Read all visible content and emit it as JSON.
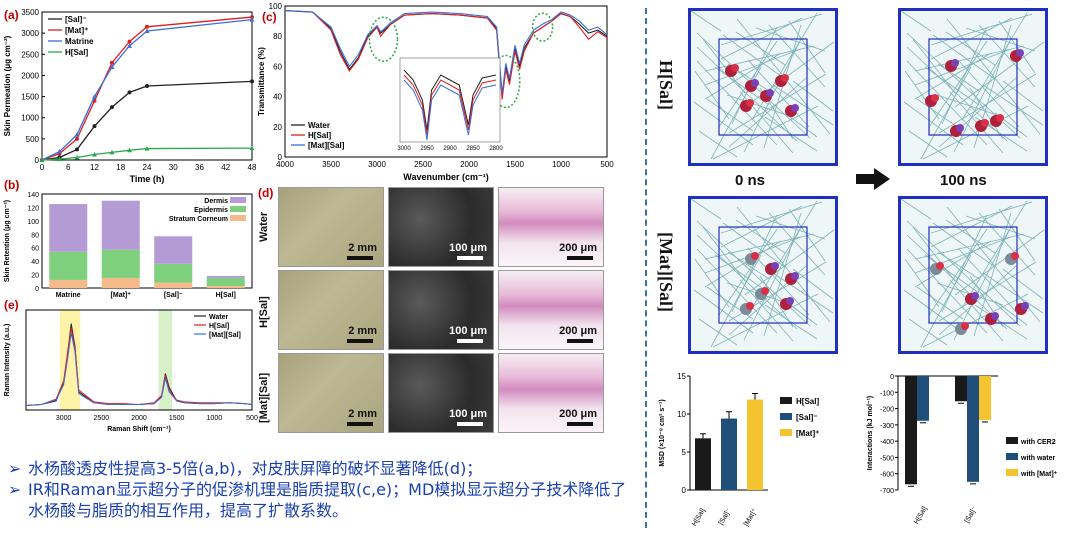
{
  "panels": {
    "a": "(a)",
    "b": "(b)",
    "c": "(c)",
    "d": "(d)",
    "e": "(e)"
  },
  "colors": {
    "sal": "#222222",
    "mat": "#e02020",
    "matrine": "#3a6fd8",
    "hsal": "#2aa84a",
    "dermis": "#b49bd6",
    "epidermis": "#7ed07e",
    "corneum": "#f6b98a",
    "accent": "#1a3fae",
    "navy": "#1f4e79",
    "yellow": "#f4c430",
    "dark": "#1a1a1a"
  },
  "chart_data": [
    {
      "id": "a",
      "type": "line",
      "xlabel": "Time (h)",
      "ylabel": "Skin Permeation (μg cm⁻²)",
      "xlim": [
        0,
        48
      ],
      "ylim": [
        0,
        3500
      ],
      "xticks": [
        "0",
        "6",
        "12",
        "18",
        "24",
        "30",
        "36",
        "42",
        "48"
      ],
      "yticks": [
        "0",
        "500",
        "1000",
        "1500",
        "2000",
        "2500",
        "3000",
        "3500"
      ],
      "x": [
        0,
        4,
        8,
        12,
        16,
        20,
        24,
        48
      ],
      "series": [
        {
          "name": "[Sal]⁻",
          "values": [
            0,
            60,
            250,
            800,
            1250,
            1600,
            1750,
            1860
          ]
        },
        {
          "name": "[Mat]⁺",
          "values": [
            0,
            150,
            500,
            1400,
            2300,
            2800,
            3150,
            3380
          ]
        },
        {
          "name": "Matrine",
          "values": [
            0,
            200,
            600,
            1500,
            2200,
            2700,
            3050,
            3320
          ]
        },
        {
          "name": "H[Sal]",
          "values": [
            0,
            20,
            60,
            130,
            180,
            230,
            270,
            280
          ]
        }
      ]
    },
    {
      "id": "b",
      "type": "bar",
      "stacked": true,
      "ylabel": "Skin Retention (μg cm⁻²)",
      "ylim": [
        0,
        140
      ],
      "yticks": [
        "0",
        "20",
        "40",
        "60",
        "80",
        "100",
        "120",
        "140"
      ],
      "categories": [
        "Matrine",
        "[Mat]⁺",
        "[Sal]⁻",
        "H[Sal]"
      ],
      "series": [
        {
          "name": "Stratum Corneum",
          "values": [
            12,
            15,
            8,
            3
          ]
        },
        {
          "name": "Epidermis",
          "values": [
            42,
            42,
            28,
            12
          ]
        },
        {
          "name": "Dermis",
          "values": [
            71,
            73,
            41,
            3
          ]
        }
      ]
    },
    {
      "id": "c",
      "type": "line",
      "xlabel": "Wavenumber (cm⁻¹)",
      "ylabel": "Transmittance (%)",
      "xlim": [
        4000,
        500
      ],
      "ylim": [
        0,
        100
      ],
      "xticks": [
        "4000",
        "3500",
        "3000",
        "2500",
        "2000",
        "1500",
        "1000",
        "500"
      ],
      "yticks": [
        "0",
        "20",
        "40",
        "60",
        "80",
        "100"
      ],
      "inset_ticks": [
        "3000",
        "2950",
        "2900",
        "2850",
        "2800"
      ],
      "x": [
        4000,
        3700,
        3500,
        3400,
        3300,
        3200,
        3100,
        3000,
        2960,
        2920,
        2850,
        2700,
        2400,
        2100,
        1800,
        1700,
        1640,
        1600,
        1560,
        1500,
        1450,
        1400,
        1300,
        1200,
        1100,
        1000,
        900,
        800,
        700,
        600,
        500
      ],
      "series": [
        {
          "name": "Water",
          "values": [
            97,
            96,
            85,
            70,
            58,
            66,
            80,
            86,
            82,
            84,
            88,
            94,
            95,
            94,
            92,
            85,
            40,
            60,
            50,
            72,
            60,
            72,
            82,
            86,
            90,
            95,
            93,
            88,
            82,
            84,
            80
          ]
        },
        {
          "name": "H[Sal]",
          "values": [
            97,
            96,
            84,
            68,
            57,
            65,
            79,
            86,
            80,
            83,
            88,
            94,
            95,
            94,
            92,
            84,
            38,
            58,
            48,
            70,
            58,
            70,
            82,
            86,
            90,
            95,
            93,
            86,
            78,
            83,
            79
          ]
        },
        {
          "name": "[Mat][Sal]",
          "values": [
            97,
            96,
            86,
            72,
            60,
            68,
            81,
            87,
            83,
            85,
            89,
            95,
            96,
            95,
            93,
            86,
            42,
            62,
            52,
            74,
            62,
            74,
            84,
            88,
            91,
            96,
            94,
            90,
            84,
            86,
            81
          ]
        }
      ]
    },
    {
      "id": "e",
      "type": "line",
      "xlabel": "Raman Shift (cm⁻¹)",
      "ylabel": "Raman Intensity (a.u.)",
      "xlim": [
        3500,
        500
      ],
      "xticks": [
        "3000",
        "2500",
        "2000",
        "1500",
        "1000",
        "500"
      ],
      "x": [
        3500,
        3300,
        3100,
        3000,
        2950,
        2900,
        2850,
        2800,
        2600,
        2400,
        2200,
        2000,
        1800,
        1700,
        1650,
        1600,
        1500,
        1400,
        1200,
        1000,
        800,
        600,
        500
      ],
      "series": [
        {
          "name": "Water",
          "values": [
            5,
            6,
            10,
            30,
            60,
            95,
            70,
            20,
            8,
            6,
            6,
            6,
            7,
            15,
            40,
            25,
            10,
            8,
            7,
            7,
            8,
            7,
            6
          ]
        },
        {
          "name": "H[Sal]",
          "values": [
            5,
            6,
            12,
            32,
            62,
            90,
            68,
            22,
            9,
            7,
            7,
            6,
            8,
            16,
            38,
            22,
            11,
            9,
            8,
            8,
            8,
            7,
            6
          ]
        },
        {
          "name": "[Mat][Sal]",
          "values": [
            5,
            6,
            11,
            28,
            55,
            85,
            64,
            18,
            8,
            6,
            6,
            6,
            7,
            14,
            35,
            20,
            10,
            8,
            7,
            7,
            8,
            7,
            6
          ]
        }
      ]
    },
    {
      "id": "msd",
      "type": "bar",
      "ylabel": "MSD (×10⁻⁸ cm² s⁻¹)",
      "ylim": [
        0,
        15
      ],
      "yticks": [
        "0",
        "5",
        "10",
        "15"
      ],
      "categories": [
        "H[Sal]",
        "[Sal]⁻",
        "[Mat]⁺"
      ],
      "values": [
        6.8,
        9.4,
        11.9
      ],
      "errors": [
        0.6,
        0.9,
        0.8
      ],
      "legend": [
        "H[Sal]",
        "[Sal]⁻",
        "[Mat]⁺"
      ]
    },
    {
      "id": "int",
      "type": "bar",
      "ylabel": "Interactions (kJ mol⁻¹)",
      "ylim": [
        -700,
        0
      ],
      "yticks": [
        "0",
        "-100",
        "-200",
        "-300",
        "-400",
        "-500",
        "-600",
        "-700"
      ],
      "categories": [
        "H[Sal]",
        "[Sal]⁻"
      ],
      "series": [
        {
          "name": "with CER2",
          "values": [
            -665,
            -155
          ]
        },
        {
          "name": "with water",
          "values": [
            -275,
            -650
          ]
        },
        {
          "name": "with [Mat]⁺",
          "values": [
            0,
            -270
          ]
        }
      ]
    }
  ],
  "panel_d": {
    "rows": [
      "Water",
      "H[Sal]",
      "[Mat][Sal]"
    ],
    "scales": [
      "2 mm",
      "100 μm",
      "200 μm"
    ]
  },
  "md": {
    "rows": [
      "H[Sal]",
      "[Mat][Sal]"
    ],
    "times": [
      "0 ns",
      "100 ns"
    ]
  },
  "bullets": [
    {
      "mark": "➢",
      "text": "水杨酸透皮性提高3-5倍(a,b)，对皮肤屏障的破坏显著降低(d)；"
    },
    {
      "mark": "➢",
      "text": "IR和Raman显示超分子的促渗机理是脂质提取(c,e)；MD模拟显示超分子技术降低了水杨酸与脂质的相互作用，提高了扩散系数。"
    }
  ]
}
